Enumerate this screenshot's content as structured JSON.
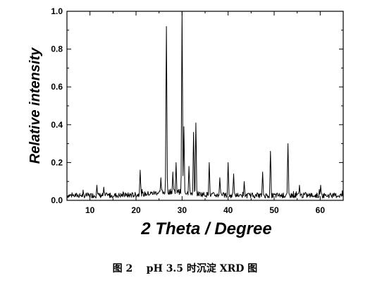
{
  "chart_data": {
    "type": "line",
    "xlabel": "2 Theta / Degree",
    "ylabel": "Relative intensity",
    "xlim": [
      5,
      65
    ],
    "ylim": [
      0,
      1.0
    ],
    "x_ticks": [
      10,
      20,
      30,
      40,
      50,
      60
    ],
    "y_ticks": [
      0.0,
      0.2,
      0.4,
      0.6,
      0.8,
      1.0
    ],
    "x_tick_labels": [
      "10",
      "20",
      "30",
      "40",
      "50",
      "60"
    ],
    "y_tick_labels": [
      "0.0",
      "0.2",
      "0.4",
      "0.6",
      "0.8",
      "1.0"
    ],
    "grid": false,
    "series": [
      {
        "line_color": "#000000",
        "peaks": [
          {
            "x": 11.5,
            "y": 0.08
          },
          {
            "x": 13.0,
            "y": 0.07
          },
          {
            "x": 20.9,
            "y": 0.16
          },
          {
            "x": 25.4,
            "y": 0.12
          },
          {
            "x": 26.6,
            "y": 0.92
          },
          {
            "x": 28.0,
            "y": 0.15
          },
          {
            "x": 28.7,
            "y": 0.2
          },
          {
            "x": 30.0,
            "y": 1.0
          },
          {
            "x": 30.4,
            "y": 0.39
          },
          {
            "x": 31.5,
            "y": 0.18
          },
          {
            "x": 32.5,
            "y": 0.36
          },
          {
            "x": 33.0,
            "y": 0.41
          },
          {
            "x": 35.9,
            "y": 0.2
          },
          {
            "x": 38.2,
            "y": 0.12
          },
          {
            "x": 40.0,
            "y": 0.2
          },
          {
            "x": 41.2,
            "y": 0.14
          },
          {
            "x": 43.5,
            "y": 0.1
          },
          {
            "x": 47.5,
            "y": 0.15
          },
          {
            "x": 49.2,
            "y": 0.26
          },
          {
            "x": 53.0,
            "y": 0.3
          },
          {
            "x": 55.5,
            "y": 0.08
          },
          {
            "x": 60.1,
            "y": 0.08
          }
        ]
      }
    ]
  },
  "caption": {
    "figure_number": "图 2",
    "text": "pH 3.5 时沉淀 XRD 图"
  }
}
